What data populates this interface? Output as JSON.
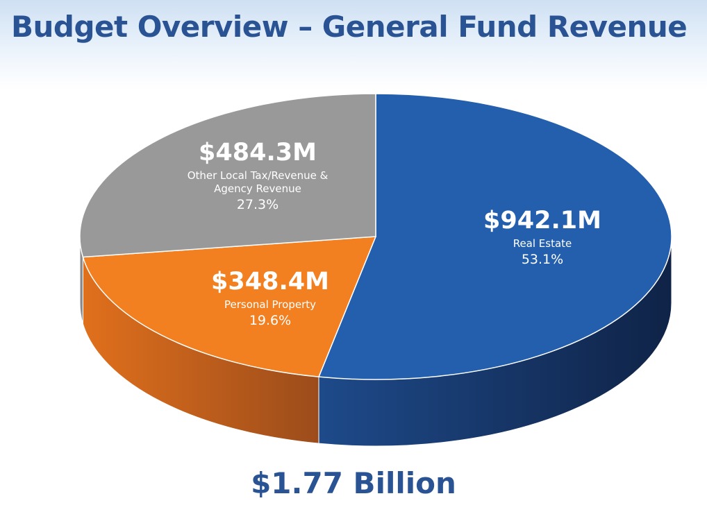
{
  "title": "Budget Overview – General Fund Revenue",
  "total_label": "$1.77 Billion",
  "chart_data": {
    "type": "pie",
    "title": "Budget Overview – General Fund Revenue",
    "total": "$1.77 Billion",
    "slices": [
      {
        "value_label": "$942.1M",
        "value": 942.1,
        "name": "Real Estate",
        "name_lines": [
          "Real Estate"
        ],
        "percent": 53.1,
        "percent_label": "53.1%",
        "top_color": "#245fad",
        "side_color_light": "#1e4a8a",
        "side_color_dark": "#0f2347"
      },
      {
        "value_label": "$348.4M",
        "value": 348.4,
        "name": "Personal Property",
        "name_lines": [
          "Personal Property"
        ],
        "percent": 19.6,
        "percent_label": "19.6%",
        "top_color": "#f28020",
        "side_color_light": "#e0701c",
        "side_color_dark": "#9c4c1b"
      },
      {
        "value_label": "$484.3M",
        "value": 484.3,
        "name": "Other Local Tax/Revenue & Agency Revenue",
        "name_lines": [
          "Other Local Tax/Revenue &",
          "Agency Revenue"
        ],
        "percent": 27.3,
        "percent_label": "27.3%",
        "top_color": "#999999",
        "side_color_light": "#8a8a8a",
        "side_color_dark": "#6a6a6a"
      }
    ]
  }
}
